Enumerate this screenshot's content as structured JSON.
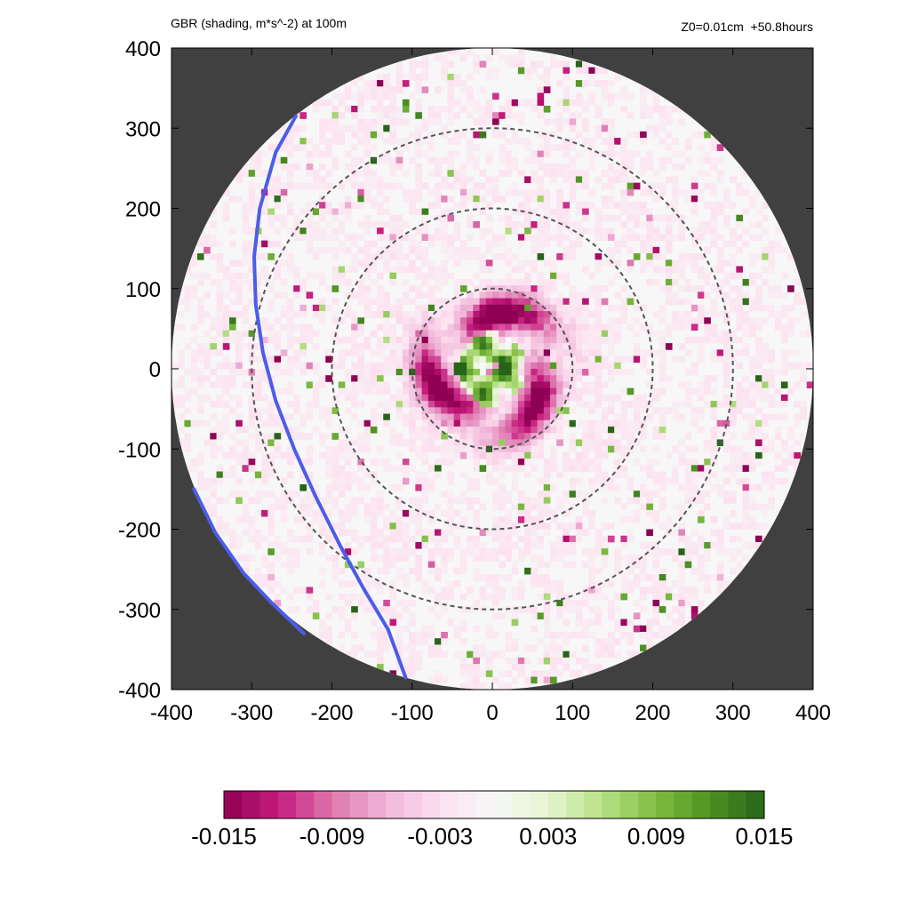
{
  "header": {
    "title": "GBR (shading, m*s^-2) at 100m",
    "run_info": "Z0=0.01cm  +50.8hours"
  },
  "chart_data": {
    "type": "heatmap",
    "title": "GBR (shading, m*s^-2) at 100m",
    "annotation": "Z0=0.01cm  +50.8hours",
    "xlim": [
      -400,
      400
    ],
    "ylim": [
      -400,
      400
    ],
    "xticks": [
      -400,
      -300,
      -200,
      -100,
      0,
      100,
      200,
      300,
      400
    ],
    "yticks": [
      -400,
      -300,
      -200,
      -100,
      0,
      100,
      200,
      300,
      400
    ],
    "xlabel": "",
    "ylabel": "",
    "domain_radius": 400,
    "range_rings": [
      100,
      200,
      300
    ],
    "colorbar": {
      "min": -0.015,
      "max": 0.015,
      "ticks": [
        "-0.015",
        "-0.009",
        "-0.003",
        "0.003",
        "0.009",
        "0.015"
      ],
      "colors": [
        "#8e0152",
        "#c51b7d",
        "#de77ae",
        "#f1b6da",
        "#fde0ef",
        "#f7f7f7",
        "#e6f5d0",
        "#b8e186",
        "#7fbc41",
        "#4d9221",
        "#276419"
      ]
    },
    "background_color": "#404040",
    "coastlines": [
      {
        "color": "#4b5de8",
        "points": [
          [
            -245,
            315
          ],
          [
            -270,
            270
          ],
          [
            -290,
            200
          ],
          [
            -297,
            140
          ],
          [
            -295,
            80
          ],
          [
            -286,
            20
          ],
          [
            -270,
            -40
          ],
          [
            -247,
            -100
          ],
          [
            -220,
            -160
          ],
          [
            -190,
            -220
          ],
          [
            -160,
            -275
          ],
          [
            -130,
            -325
          ],
          [
            -108,
            -385
          ]
        ]
      },
      {
        "color": "#4b5de8",
        "points": [
          [
            -372,
            -150
          ],
          [
            -345,
            -205
          ],
          [
            -310,
            -255
          ],
          [
            -275,
            -292
          ],
          [
            -235,
            -330
          ]
        ]
      }
    ],
    "features": [
      {
        "kind": "inner-core-negative",
        "description_value": -0.015,
        "radius_range": [
          30,
          110
        ]
      },
      {
        "kind": "eye-positive",
        "description_value": 0.015,
        "radius_range": [
          0,
          45
        ]
      }
    ]
  }
}
